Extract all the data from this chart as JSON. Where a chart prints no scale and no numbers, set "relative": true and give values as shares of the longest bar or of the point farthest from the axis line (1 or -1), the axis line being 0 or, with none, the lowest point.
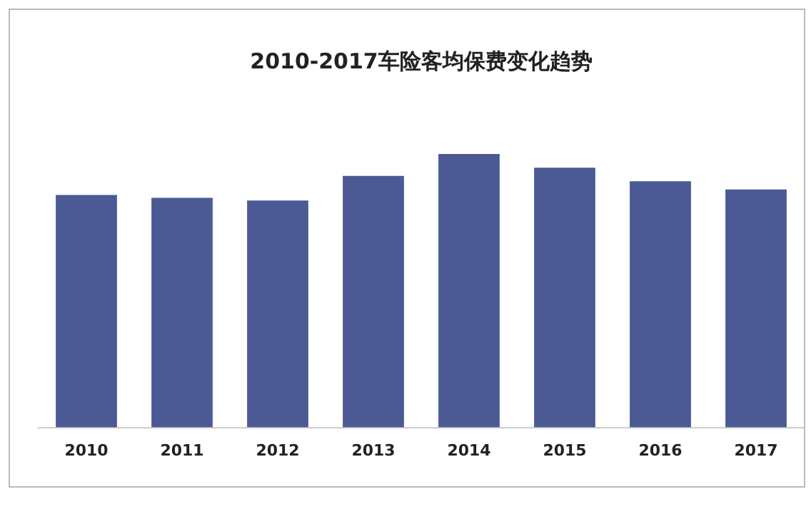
{
  "chart_data": {
    "type": "bar",
    "title": "2010-2017车险客均保费变化趋势",
    "relative": true,
    "categories": [
      "2010",
      "2011",
      "2012",
      "2013",
      "2014",
      "2015",
      "2016",
      "2017"
    ],
    "values": [
      0.85,
      0.84,
      0.83,
      0.92,
      1,
      0.95,
      0.9,
      0.87
    ],
    "color": "#4b5a94",
    "grid": false,
    "legend": false
  }
}
